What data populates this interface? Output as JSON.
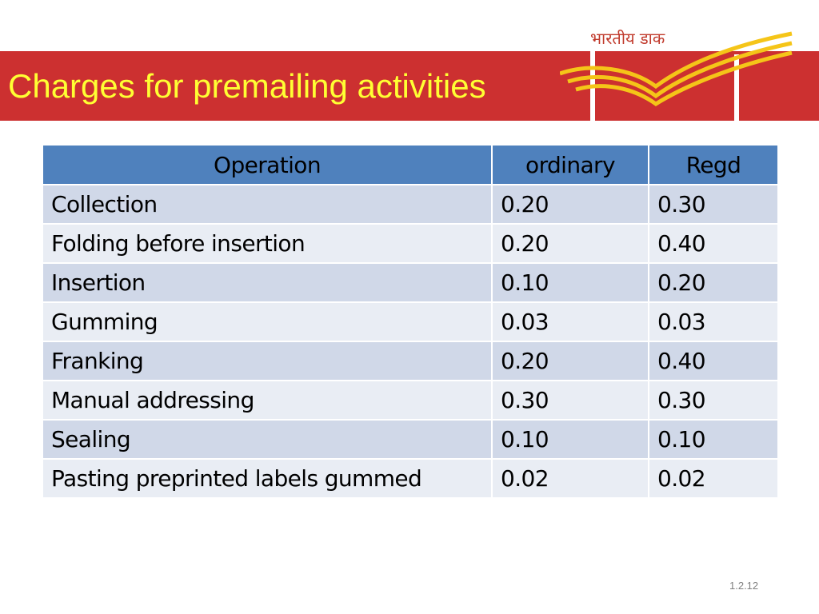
{
  "slide": {
    "title": "Charges for premailing activities",
    "logo": {
      "text": "भारतीय डाक",
      "icon": "india-post-logo"
    },
    "colors": {
      "banner": "#cc3030",
      "title": "#ffff33",
      "header": "#4f81bd",
      "row_odd": "#d0d8e8",
      "row_even": "#e9edf4",
      "logo_stripes": "#f5c518"
    },
    "footer": "1.2.12"
  },
  "table": {
    "headers": [
      "Operation",
      "ordinary",
      "Regd"
    ],
    "rows": [
      [
        "Collection",
        "0.20",
        "0.30"
      ],
      [
        "Folding before insertion",
        "0.20",
        "0.40"
      ],
      [
        "Insertion",
        "0.10",
        "0.20"
      ],
      [
        "Gumming",
        "0.03",
        "0.03"
      ],
      [
        "Franking",
        "0.20",
        "0.40"
      ],
      [
        "Manual addressing",
        "0.30",
        "0.30"
      ],
      [
        "Sealing",
        "0.10",
        "0.10"
      ],
      [
        "Pasting preprinted labels gummed",
        "0.02",
        "0.02"
      ]
    ]
  }
}
